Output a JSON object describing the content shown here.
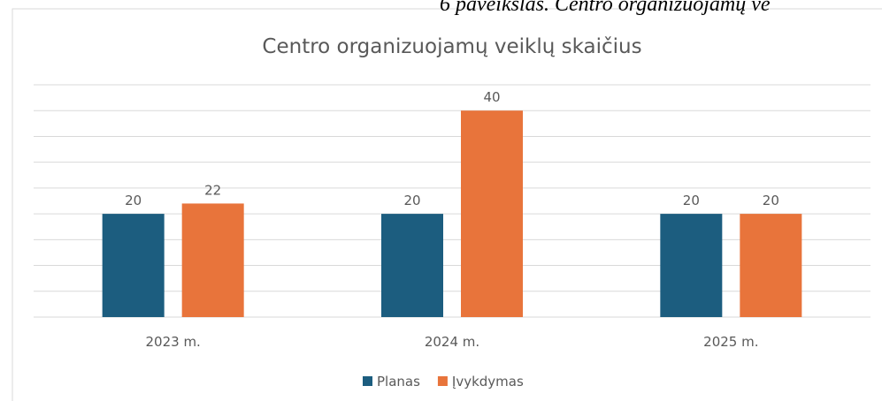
{
  "caption": "6 paveikslas. Centro organizuojamų ve",
  "chart_data": {
    "type": "bar",
    "title": "Centro organizuojamų veiklų skaičius",
    "categories": [
      "2023 m.",
      "2024 m.",
      "2025 m."
    ],
    "series": [
      {
        "name": "Planas",
        "color": "#1c5d7f",
        "values": [
          20,
          20,
          20
        ]
      },
      {
        "name": "Įvykdymas",
        "color": "#e8743b",
        "values": [
          22,
          40,
          20
        ]
      }
    ],
    "ylim": [
      0,
      45
    ],
    "yticks": [
      0,
      5,
      10,
      15,
      20,
      25,
      30,
      35,
      40,
      45
    ],
    "grid": true,
    "legend": "bottom"
  }
}
